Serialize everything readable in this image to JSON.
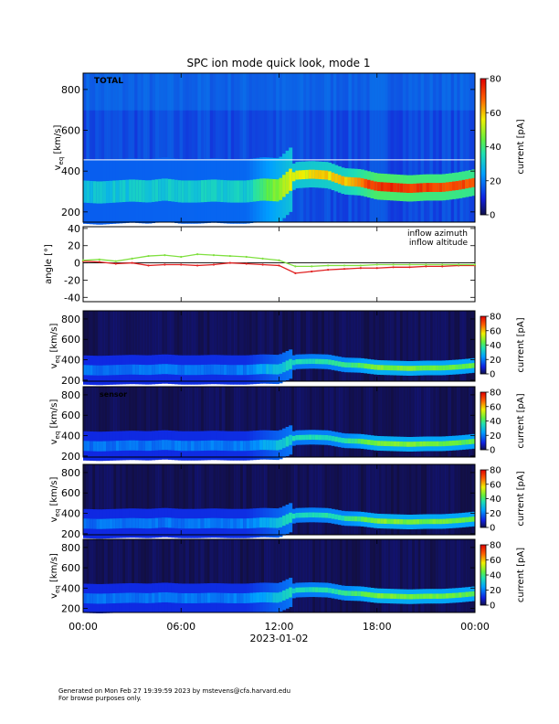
{
  "title": "SPC ion mode quick look, mode 1",
  "footer": {
    "line1": "Generated on Mon Feb 27 19:39:59 2023 by mstevens@cfa.harvard.edu",
    "line2": "For browse purposes only."
  },
  "colors": {
    "inflow_azimuth": "#e02020",
    "inflow_altitude": "#80e040",
    "spectrogram_bg_total": "#1840d0",
    "spectrogram_bg_sensor": "#140a20"
  },
  "chart_data": [
    {
      "type": "heatmap",
      "panel": "total",
      "panel_label": "TOTAL",
      "ylabel": "v_eq [km/s]",
      "ylim": [
        150,
        880
      ],
      "yticks": [
        200,
        400,
        600,
        800
      ],
      "xlim": [
        0,
        24
      ],
      "x_unit": "hours of 2023-01-02",
      "colorbar": {
        "label": "current [pA]",
        "range": [
          0,
          80
        ],
        "ticks": [
          0,
          20,
          40,
          60,
          80
        ]
      },
      "ridge_speed": {
        "x": [
          0,
          1,
          2,
          3,
          4,
          5,
          6,
          7,
          8,
          9,
          10,
          11,
          12,
          13,
          14,
          15,
          16,
          17,
          18,
          19,
          20,
          21,
          22,
          23,
          24
        ],
        "y": [
          300,
          295,
          300,
          305,
          300,
          310,
          300,
          300,
          305,
          300,
          300,
          310,
          305,
          380,
          385,
          380,
          350,
          345,
          325,
          320,
          315,
          320,
          320,
          330,
          345
        ]
      },
      "ridge_peak_current_pA": {
        "x": [
          0,
          10,
          12.8,
          16,
          18,
          24
        ],
        "y": [
          30,
          32,
          55,
          60,
          75,
          70
        ]
      }
    },
    {
      "type": "line",
      "panel": "angle",
      "ylabel": "angle [°]",
      "ylim": [
        -45,
        42
      ],
      "yticks": [
        -40,
        -20,
        0,
        20,
        40
      ],
      "xlim": [
        0,
        24
      ],
      "series": [
        {
          "name": "inflow azimuth",
          "color": "#e02020",
          "x": [
            0,
            1,
            2,
            3,
            4,
            5,
            6,
            7,
            8,
            9,
            10,
            11,
            12,
            13,
            14,
            15,
            16,
            17,
            18,
            19,
            20,
            21,
            22,
            23,
            24
          ],
          "y": [
            2,
            1,
            -1,
            0,
            -3,
            -2,
            -2,
            -3,
            -2,
            0,
            -1,
            -2,
            -3,
            -12,
            -10,
            -8,
            -7,
            -6,
            -6,
            -5,
            -5,
            -4,
            -4,
            -3,
            -3
          ]
        },
        {
          "name": "inflow altitude",
          "color": "#80e040",
          "x": [
            0,
            1,
            2,
            3,
            4,
            5,
            6,
            7,
            8,
            9,
            10,
            11,
            12,
            13,
            14,
            15,
            16,
            17,
            18,
            19,
            20,
            21,
            22,
            23,
            24
          ],
          "y": [
            3,
            4,
            2,
            5,
            8,
            9,
            7,
            10,
            9,
            8,
            7,
            5,
            3,
            -4,
            -4,
            -3,
            -3,
            -3,
            -2,
            -2,
            -2,
            -2,
            -2,
            -2,
            -2
          ]
        }
      ]
    },
    {
      "type": "heatmap",
      "panel": "sensor_1",
      "ylabel": "v_eq [km/s]",
      "ylim": [
        190,
        880
      ],
      "yticks": [
        200,
        400,
        600,
        800
      ],
      "xlim": [
        0,
        24
      ],
      "colorbar": {
        "label": "current [pA]",
        "range": [
          0,
          80
        ],
        "ticks": [
          0,
          20,
          40,
          60,
          80
        ]
      }
    },
    {
      "type": "heatmap",
      "panel": "sensor_2",
      "panel_label": "sensor",
      "ylabel": "v_eq [km/s]",
      "ylim": [
        190,
        880
      ],
      "yticks": [
        200,
        400,
        600,
        800
      ],
      "xlim": [
        0,
        24
      ],
      "colorbar": {
        "label": "current [pA]",
        "range": [
          0,
          80
        ],
        "ticks": [
          0,
          20,
          40,
          60,
          80
        ]
      }
    },
    {
      "type": "heatmap",
      "panel": "sensor_3",
      "ylabel": "v_eq [km/s]",
      "ylim": [
        190,
        880
      ],
      "yticks": [
        200,
        400,
        600,
        800
      ],
      "xlim": [
        0,
        24
      ],
      "colorbar": {
        "label": "current [pA]",
        "range": [
          0,
          80
        ],
        "ticks": [
          0,
          20,
          40,
          60,
          80
        ]
      }
    },
    {
      "type": "heatmap",
      "panel": "sensor_4",
      "ylabel": "v_eq [km/s]",
      "ylim": [
        160,
        880
      ],
      "yticks": [
        200,
        400,
        600,
        800
      ],
      "xlim": [
        0,
        24
      ],
      "colorbar": {
        "label": "current [pA]",
        "range": [
          0,
          80
        ],
        "ticks": [
          0,
          20,
          40,
          60,
          80
        ]
      }
    }
  ],
  "x_axis": {
    "tick_labels": [
      "00:00",
      "06:00",
      "12:00",
      "18:00",
      "00:00"
    ],
    "tick_hours": [
      0,
      6,
      12,
      18,
      24
    ],
    "date_label": "2023-01-02"
  }
}
